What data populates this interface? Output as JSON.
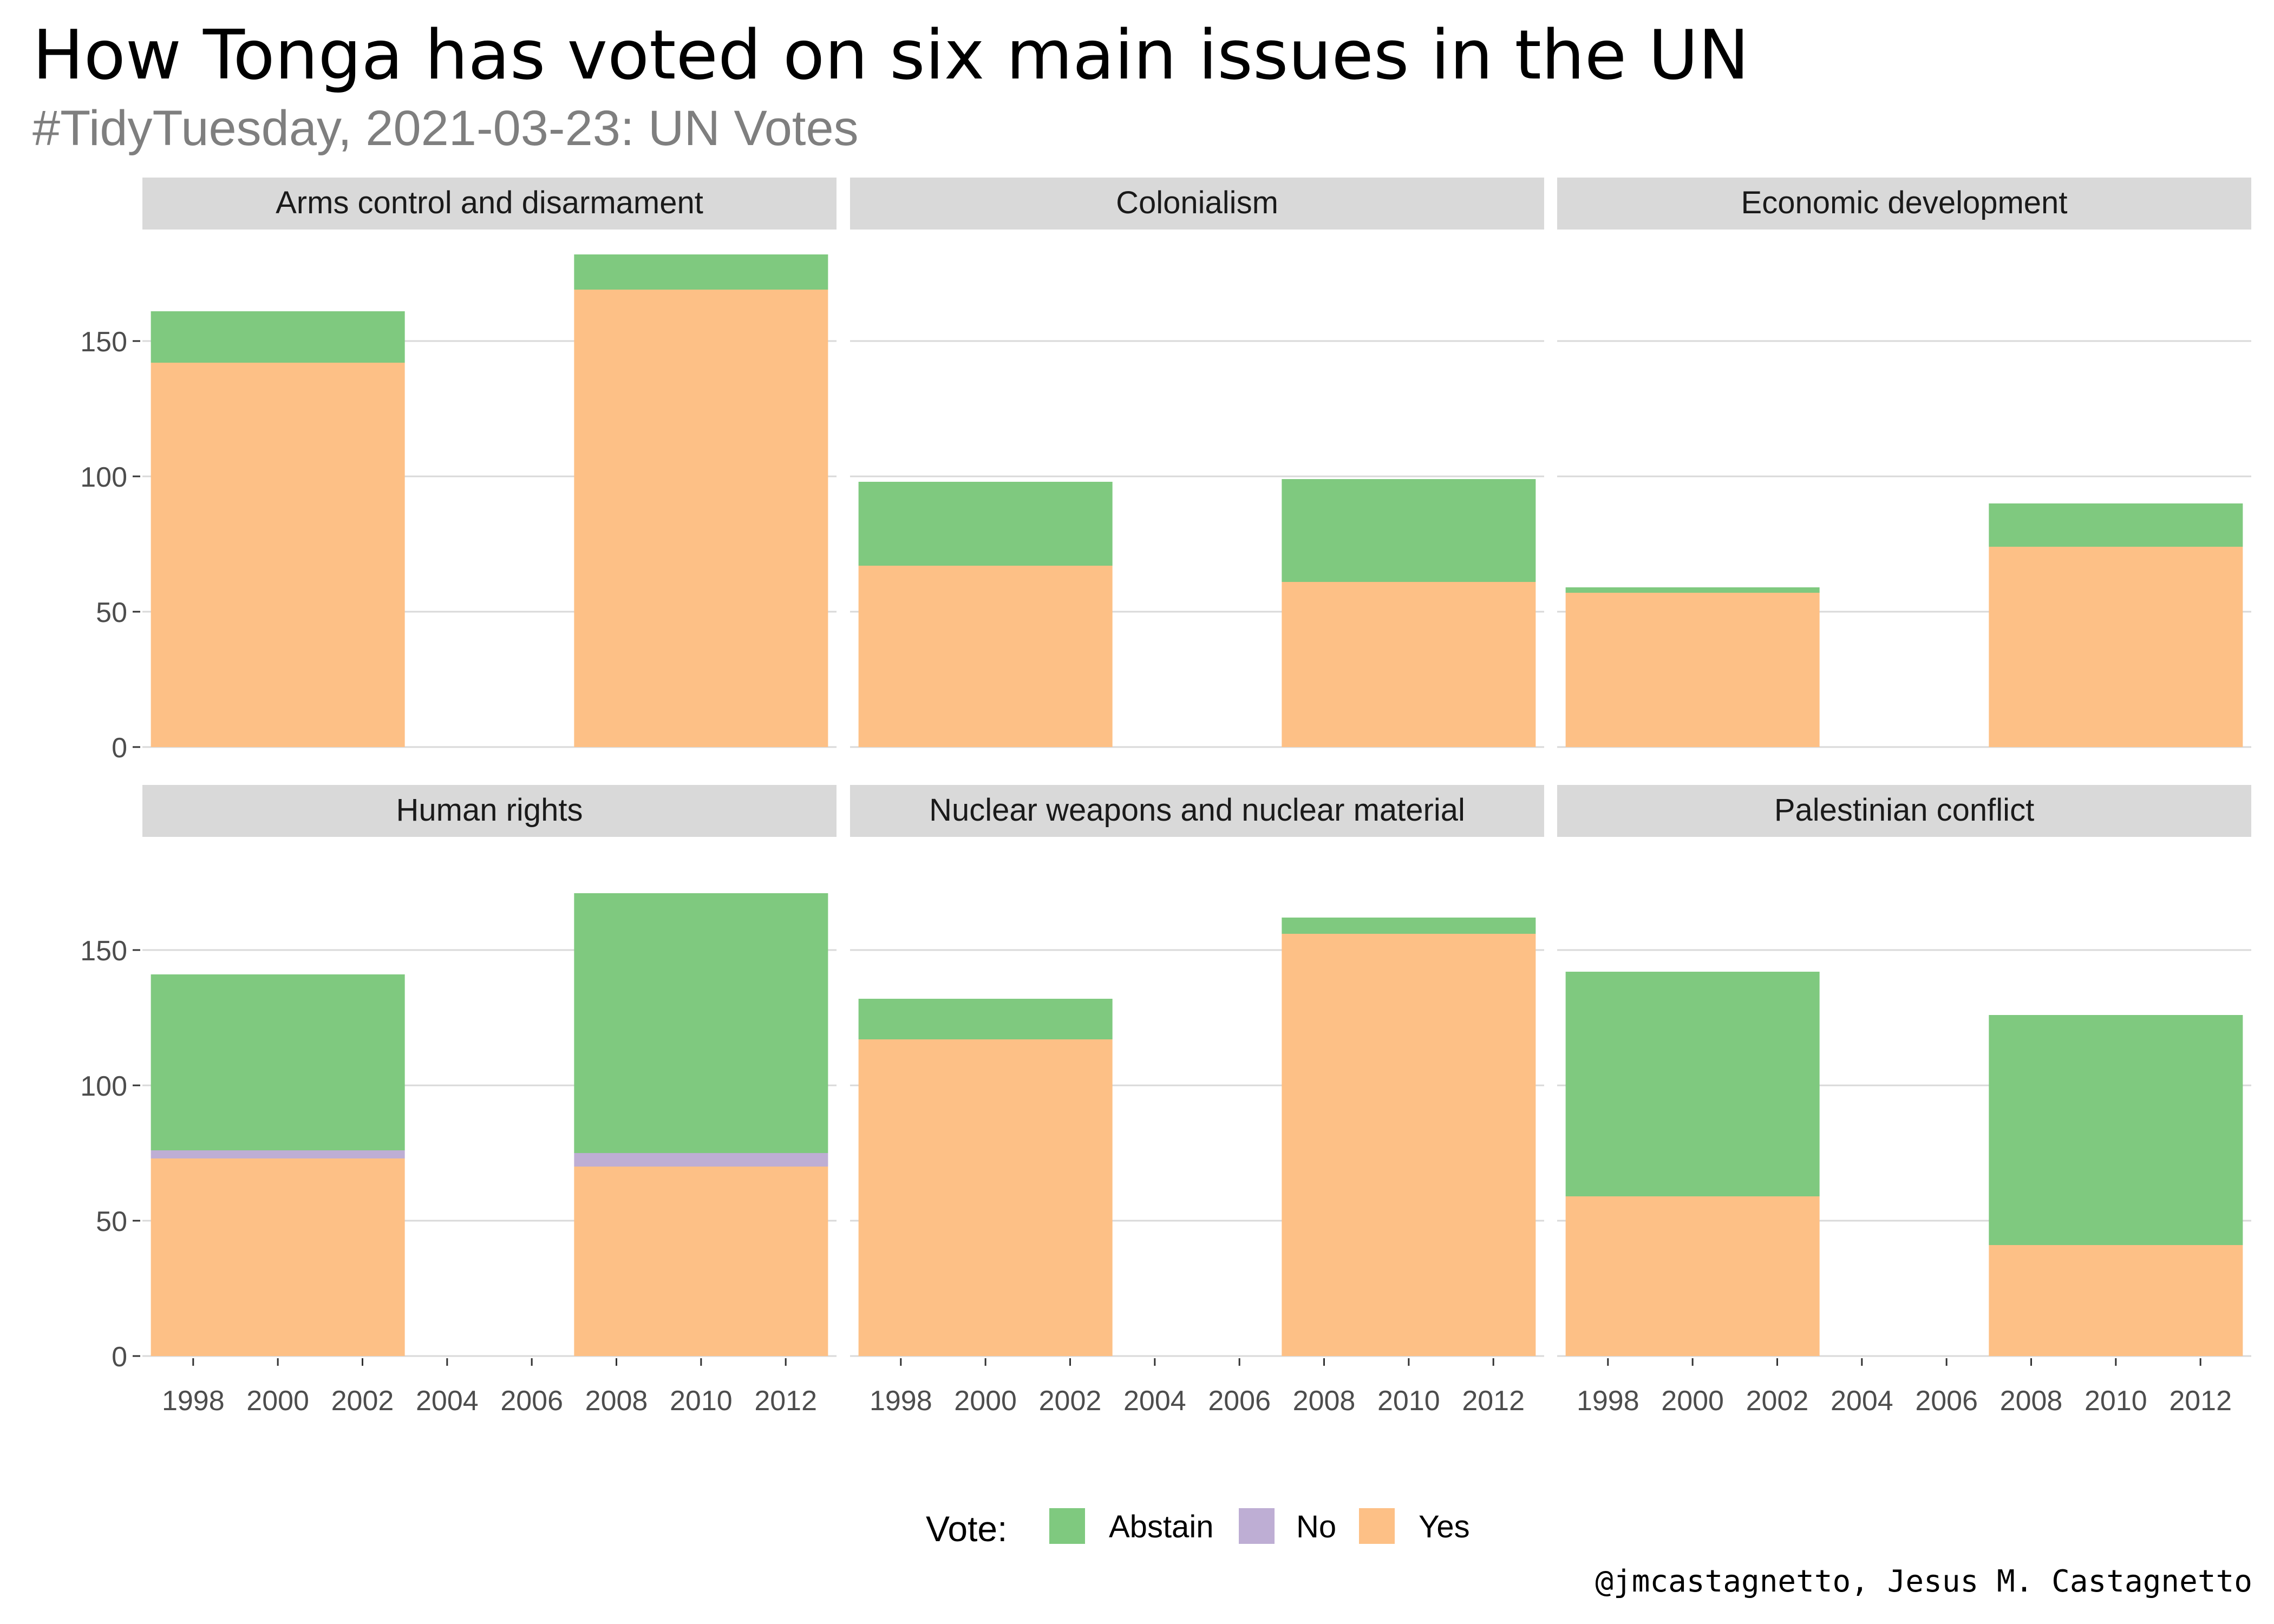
{
  "title": "How Tonga has voted on six main issues in the UN",
  "subtitle": "#TidyTuesday, 2021-03-23: UN Votes",
  "caption": "@jmcastagnetto, Jesus M. Castagnetto",
  "legend": {
    "title": "Vote:",
    "placement": "bottom",
    "items": [
      {
        "label": "Abstain",
        "color": "#7fc97f"
      },
      {
        "label": "No",
        "color": "#beaed4"
      },
      {
        "label": "Yes",
        "color": "#fdc086"
      }
    ]
  },
  "chart_data": {
    "type": "bar",
    "stacked": true,
    "facet_layout": "2x3",
    "x_ticks": [
      1998,
      2000,
      2002,
      2004,
      2006,
      2008,
      2010,
      2012
    ],
    "xlim": [
      1996.8,
      2013.2
    ],
    "y_ticks": [
      0,
      50,
      100,
      150
    ],
    "ylim": [
      0,
      190
    ],
    "grid": "horizontal",
    "bar_periods": [
      {
        "start": 1997,
        "end": 2003
      },
      {
        "start": 2007,
        "end": 2013
      }
    ],
    "stack_order": [
      "Yes",
      "No",
      "Abstain"
    ],
    "panels": [
      {
        "label": "Arms control and disarmament",
        "bars": [
          {
            "Yes": 142,
            "No": 0,
            "Abstain": 19
          },
          {
            "Yes": 169,
            "No": 0,
            "Abstain": 13
          }
        ]
      },
      {
        "label": "Colonialism",
        "bars": [
          {
            "Yes": 67,
            "No": 0,
            "Abstain": 31
          },
          {
            "Yes": 61,
            "No": 0,
            "Abstain": 38
          }
        ]
      },
      {
        "label": "Economic development",
        "bars": [
          {
            "Yes": 57,
            "No": 0,
            "Abstain": 2
          },
          {
            "Yes": 74,
            "No": 0,
            "Abstain": 16
          }
        ]
      },
      {
        "label": "Human rights",
        "bars": [
          {
            "Yes": 73,
            "No": 3,
            "Abstain": 65
          },
          {
            "Yes": 70,
            "No": 5,
            "Abstain": 96
          }
        ]
      },
      {
        "label": "Nuclear weapons and nuclear material",
        "bars": [
          {
            "Yes": 117,
            "No": 0,
            "Abstain": 15
          },
          {
            "Yes": 156,
            "No": 0,
            "Abstain": 6
          }
        ]
      },
      {
        "label": "Palestinian conflict",
        "bars": [
          {
            "Yes": 59,
            "No": 0,
            "Abstain": 83
          },
          {
            "Yes": 41,
            "No": 0,
            "Abstain": 85
          }
        ]
      }
    ]
  }
}
